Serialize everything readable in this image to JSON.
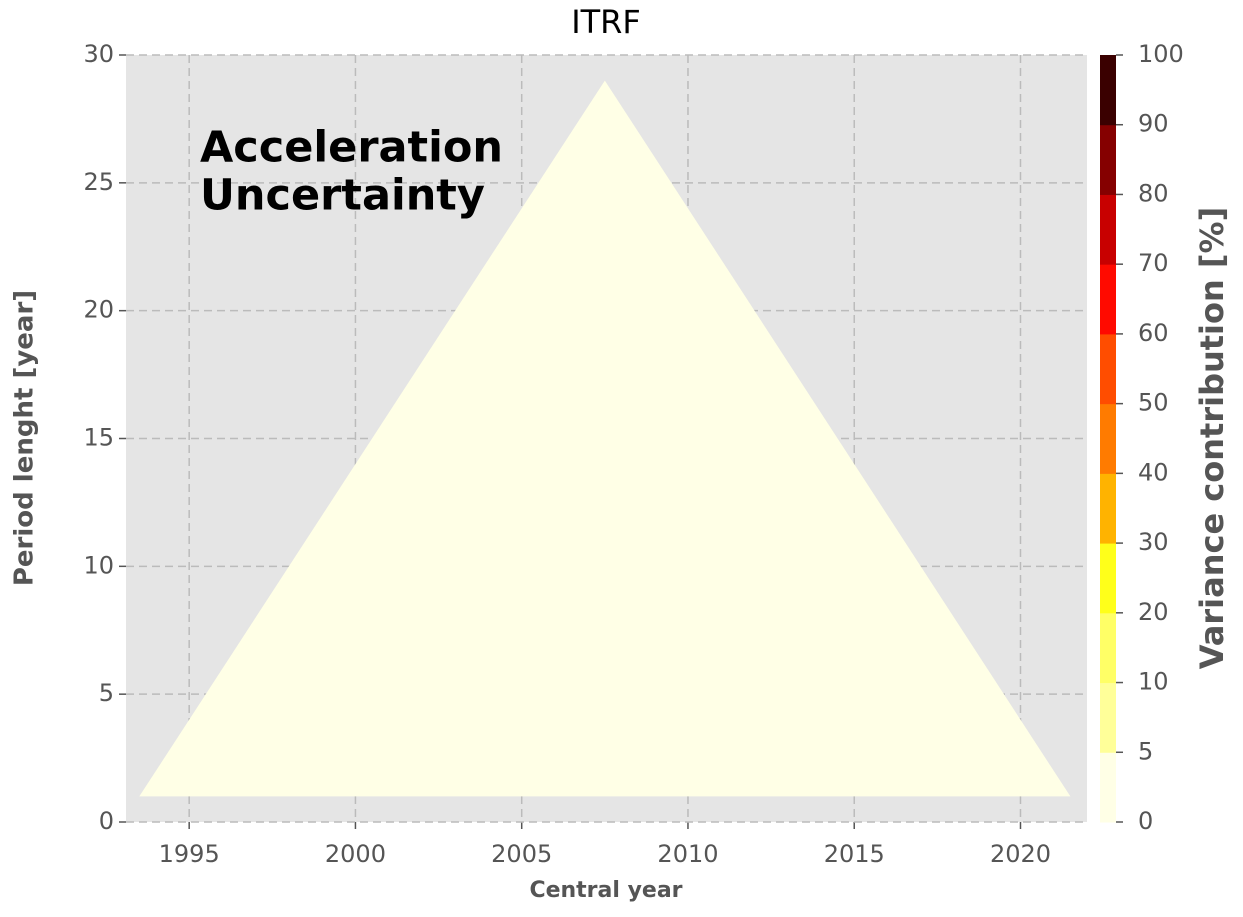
{
  "chart_data": {
    "type": "filled-contour",
    "title": "ITRF",
    "annotation": [
      "Acceleration",
      "Uncertainty"
    ],
    "xlabel": "Central year",
    "ylabel": "Period lenght [year]",
    "xlim": [
      1993.1,
      2022
    ],
    "xticks": [
      1995,
      2000,
      2005,
      2010,
      2015,
      2020
    ],
    "ylim": [
      0,
      30
    ],
    "yticks": [
      0,
      5,
      10,
      15,
      20,
      25,
      30
    ],
    "grid": true,
    "background": "#e5e5e5",
    "regions": [
      {
        "x": [
          1993.5,
          2007.5,
          2021.5
        ],
        "y": [
          1,
          29,
          1
        ],
        "color": "#ffffe6"
      }
    ],
    "colorbar": {
      "label": "Variance contribution [%]",
      "levels": [
        0,
        5,
        10,
        20,
        30,
        40,
        50,
        60,
        70,
        80,
        90,
        100
      ],
      "colors": [
        "#ffffe6",
        "#ffff99",
        "#ffff66",
        "#ffff1a",
        "#ffb300",
        "#ff7b00",
        "#ff4d00",
        "#ff0a00",
        "#c80000",
        "#850000",
        "#3a0000"
      ]
    }
  }
}
